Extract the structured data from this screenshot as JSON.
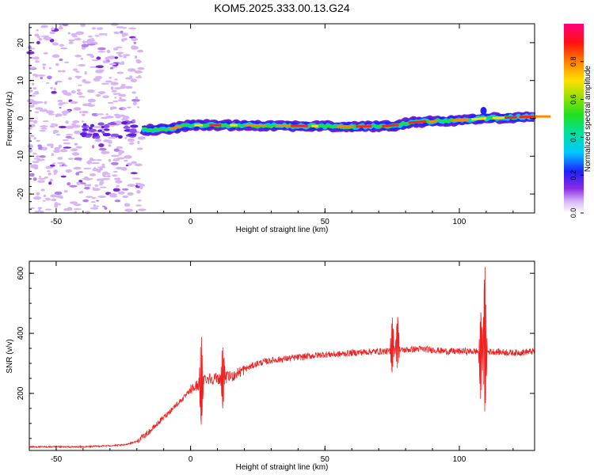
{
  "title": "KOM5.2025.333.00.13.G24",
  "chart_data": [
    {
      "type": "heatmap",
      "title": "KOM5.2025.333.00.13.G24",
      "xlabel": "Height of straight line (km)",
      "ylabel": "Frequency (Hz)",
      "xlim": [
        -60,
        128
      ],
      "ylim": [
        -25,
        25
      ],
      "x_ticks": [
        "-50",
        "0",
        "50",
        "100"
      ],
      "y_ticks": [
        "-20",
        "-10",
        "0",
        "10",
        "20"
      ],
      "colorbar": {
        "label": "Normalized spectral amplitude",
        "range": [
          0,
          1
        ],
        "ticks": [
          "0.0",
          "0.2",
          "0.4",
          "0.6",
          "0.8"
        ]
      },
      "ridge": [
        {
          "x": -18,
          "y": -3.0
        },
        {
          "x": -10,
          "y": -3.0
        },
        {
          "x": 0,
          "y": -1.8
        },
        {
          "x": 20,
          "y": -1.8
        },
        {
          "x": 40,
          "y": -2.0
        },
        {
          "x": 60,
          "y": -2.2
        },
        {
          "x": 76,
          "y": -2.0
        },
        {
          "x": 82,
          "y": -1.0
        },
        {
          "x": 100,
          "y": -0.5
        },
        {
          "x": 110,
          "y": 0.0
        },
        {
          "x": 128,
          "y": 0.5
        }
      ]
    },
    {
      "type": "line",
      "title": "",
      "xlabel": "Height of straight line (km)",
      "ylabel": "SNR (v/v)",
      "xlim": [
        -60,
        128
      ],
      "ylim": [
        10,
        640
      ],
      "x_ticks": [
        "-50",
        "0",
        "50",
        "100"
      ],
      "y_ticks": [
        "200",
        "400",
        "600"
      ],
      "series": [
        {
          "color": "#ee2222",
          "points": [
            [
              -60,
              22
            ],
            [
              -40,
              22
            ],
            [
              -25,
              28
            ],
            [
              -20,
              40
            ],
            [
              -15,
              75
            ],
            [
              -10,
              120
            ],
            [
              -5,
              165
            ],
            [
              -2,
              190
            ],
            [
              0,
              210
            ],
            [
              3,
              230
            ],
            [
              5,
              250
            ],
            [
              10,
              250
            ],
            [
              15,
              255
            ],
            [
              20,
              280
            ],
            [
              25,
              300
            ],
            [
              30,
              310
            ],
            [
              35,
              315
            ],
            [
              40,
              320
            ],
            [
              45,
              325
            ],
            [
              50,
              330
            ],
            [
              55,
              330
            ],
            [
              60,
              335
            ],
            [
              65,
              338
            ],
            [
              70,
              340
            ],
            [
              75,
              340
            ],
            [
              80,
              345
            ],
            [
              85,
              348
            ],
            [
              90,
              345
            ],
            [
              95,
              340
            ],
            [
              100,
              340
            ],
            [
              105,
              340
            ],
            [
              110,
              340
            ],
            [
              115,
              338
            ],
            [
              120,
              335
            ],
            [
              128,
              340
            ]
          ],
          "spikes": [
            {
              "x": 4,
              "y": 400,
              "low": 90
            },
            {
              "x": 12,
              "y": 370,
              "low": 150
            },
            {
              "x": 75,
              "y": 470,
              "low": 270
            },
            {
              "x": 77,
              "y": 460,
              "low": 280
            },
            {
              "x": 108,
              "y": 470,
              "low": 160
            },
            {
              "x": 109.5,
              "y": 640,
              "low": 125
            }
          ]
        }
      ]
    }
  ]
}
